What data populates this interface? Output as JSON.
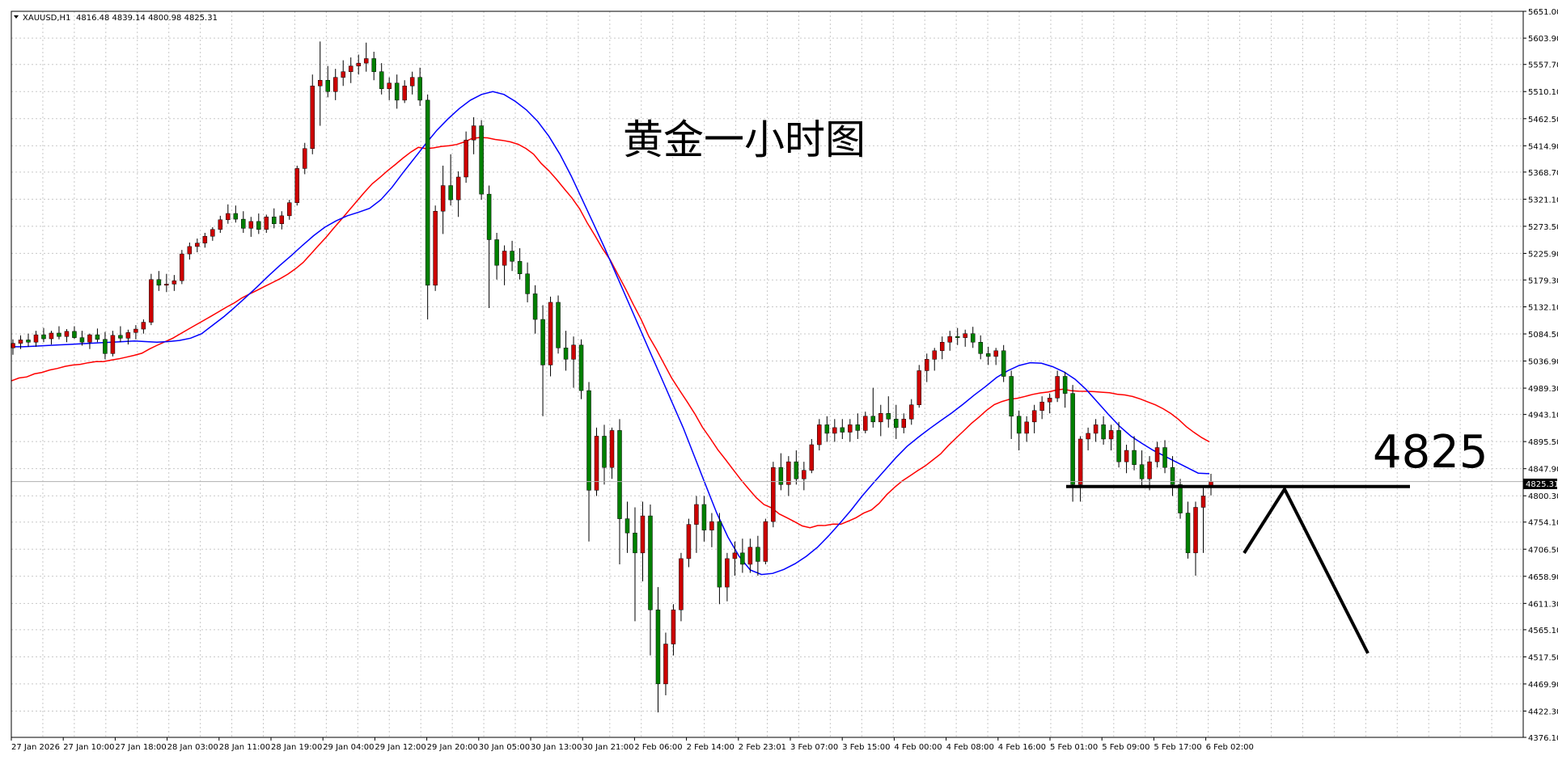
{
  "header": {
    "symbol_label": "XAUUSD,H1",
    "ohlc": "4816.48 4839.14 4800.98 4825.31"
  },
  "annotations": {
    "title": "黄金一小时图",
    "level_label": "4825"
  },
  "price_tag": "4825.31",
  "colors": {
    "bull": "#cc0000",
    "bear": "#008000",
    "ma_fast": "#0000ff",
    "ma_slow": "#ff0000",
    "grid": "#c8c8c8",
    "axis": "#000000"
  },
  "chart_data": {
    "type": "candlestick",
    "ylim": [
      4376.1,
      5651.0
    ],
    "y_ticks": [
      "5651.00",
      "5603.90",
      "5557.70",
      "5510.10",
      "5462.50",
      "5414.90",
      "5368.70",
      "5321.10",
      "5273.50",
      "5225.90",
      "5179.30",
      "5132.10",
      "5084.50",
      "5036.90",
      "4989.30",
      "4943.10",
      "4895.50",
      "4847.90",
      "4800.30",
      "4754.10",
      "4706.50",
      "4658.90",
      "4611.30",
      "4565.10",
      "4517.50",
      "4469.90",
      "4422.30",
      "4376.10"
    ],
    "x_ticks": [
      "27 Jan 2026",
      "27 Jan 10:00",
      "27 Jan 18:00",
      "28 Jan 03:00",
      "28 Jan 11:00",
      "28 Jan 19:00",
      "29 Jan 04:00",
      "29 Jan 12:00",
      "29 Jan 20:00",
      "30 Jan 05:00",
      "30 Jan 13:00",
      "30 Jan 21:00",
      "2 Feb 06:00",
      "2 Feb 14:00",
      "2 Feb 23:01",
      "3 Feb 07:00",
      "3 Feb 15:00",
      "4 Feb 00:00",
      "4 Feb 08:00",
      "4 Feb 16:00",
      "5 Feb 01:00",
      "5 Feb 09:00",
      "5 Feb 17:00",
      "6 Feb 02:00"
    ],
    "last_price": 4825.31,
    "horizontal_level": 4825,
    "candles": [
      [
        5060,
        5075,
        5048,
        5068
      ],
      [
        5068,
        5082,
        5058,
        5074
      ],
      [
        5074,
        5085,
        5062,
        5070
      ],
      [
        5070,
        5090,
        5062,
        5083
      ],
      [
        5083,
        5095,
        5070,
        5076
      ],
      [
        5076,
        5090,
        5066,
        5086
      ],
      [
        5086,
        5098,
        5075,
        5080
      ],
      [
        5080,
        5093,
        5070,
        5089
      ],
      [
        5089,
        5098,
        5076,
        5078
      ],
      [
        5078,
        5090,
        5064,
        5070
      ],
      [
        5070,
        5085,
        5058,
        5083
      ],
      [
        5083,
        5094,
        5070,
        5075
      ],
      [
        5075,
        5088,
        5040,
        5050
      ],
      [
        5050,
        5090,
        5045,
        5082
      ],
      [
        5082,
        5098,
        5070,
        5077
      ],
      [
        5077,
        5092,
        5066,
        5087
      ],
      [
        5087,
        5100,
        5075,
        5093
      ],
      [
        5093,
        5110,
        5085,
        5105
      ],
      [
        5105,
        5190,
        5100,
        5180
      ],
      [
        5180,
        5195,
        5160,
        5170
      ],
      [
        5170,
        5190,
        5158,
        5172
      ],
      [
        5172,
        5188,
        5160,
        5178
      ],
      [
        5178,
        5232,
        5172,
        5225
      ],
      [
        5225,
        5245,
        5215,
        5238
      ],
      [
        5238,
        5252,
        5228,
        5244
      ],
      [
        5244,
        5262,
        5236,
        5256
      ],
      [
        5256,
        5272,
        5248,
        5268
      ],
      [
        5268,
        5292,
        5262,
        5285
      ],
      [
        5285,
        5312,
        5278,
        5296
      ],
      [
        5296,
        5310,
        5280,
        5286
      ],
      [
        5286,
        5300,
        5262,
        5270
      ],
      [
        5270,
        5290,
        5255,
        5282
      ],
      [
        5282,
        5296,
        5260,
        5268
      ],
      [
        5268,
        5294,
        5262,
        5290
      ],
      [
        5290,
        5305,
        5270,
        5278
      ],
      [
        5278,
        5300,
        5268,
        5292
      ],
      [
        5292,
        5320,
        5285,
        5315
      ],
      [
        5315,
        5380,
        5310,
        5375
      ],
      [
        5375,
        5420,
        5365,
        5410
      ],
      [
        5410,
        5540,
        5400,
        5520
      ],
      [
        5520,
        5598,
        5450,
        5530
      ],
      [
        5530,
        5555,
        5500,
        5510
      ],
      [
        5510,
        5550,
        5495,
        5535
      ],
      [
        5535,
        5565,
        5520,
        5545
      ],
      [
        5545,
        5570,
        5525,
        5555
      ],
      [
        5555,
        5575,
        5540,
        5560
      ],
      [
        5560,
        5596,
        5545,
        5568
      ],
      [
        5568,
        5580,
        5530,
        5545
      ],
      [
        5545,
        5560,
        5505,
        5515
      ],
      [
        5515,
        5535,
        5495,
        5525
      ],
      [
        5525,
        5540,
        5480,
        5495
      ],
      [
        5495,
        5530,
        5490,
        5520
      ],
      [
        5520,
        5545,
        5505,
        5535
      ],
      [
        5535,
        5552,
        5485,
        5495
      ],
      [
        5495,
        5505,
        5110,
        5170
      ],
      [
        5170,
        5310,
        5160,
        5300
      ],
      [
        5300,
        5380,
        5260,
        5345
      ],
      [
        5345,
        5400,
        5310,
        5320
      ],
      [
        5320,
        5370,
        5290,
        5360
      ],
      [
        5360,
        5440,
        5350,
        5425
      ],
      [
        5425,
        5465,
        5400,
        5450
      ],
      [
        5450,
        5460,
        5320,
        5330
      ],
      [
        5330,
        5345,
        5130,
        5250
      ],
      [
        5250,
        5262,
        5180,
        5205
      ],
      [
        5205,
        5240,
        5170,
        5230
      ],
      [
        5230,
        5248,
        5195,
        5212
      ],
      [
        5212,
        5235,
        5180,
        5190
      ],
      [
        5190,
        5210,
        5140,
        5155
      ],
      [
        5155,
        5170,
        5085,
        5110
      ],
      [
        5110,
        5135,
        4940,
        5030
      ],
      [
        5030,
        5150,
        5010,
        5140
      ],
      [
        5140,
        5152,
        5050,
        5060
      ],
      [
        5060,
        5090,
        5020,
        5040
      ],
      [
        5040,
        5080,
        4990,
        5065
      ],
      [
        5065,
        5075,
        4970,
        4985
      ],
      [
        4985,
        5000,
        4720,
        4810
      ],
      [
        4810,
        4920,
        4800,
        4905
      ],
      [
        4905,
        4925,
        4820,
        4850
      ],
      [
        4850,
        4920,
        4830,
        4915
      ],
      [
        4915,
        4935,
        4680,
        4760
      ],
      [
        4760,
        4790,
        4700,
        4735
      ],
      [
        4735,
        4780,
        4580,
        4700
      ],
      [
        4700,
        4790,
        4650,
        4765
      ],
      [
        4765,
        4785,
        4520,
        4600
      ],
      [
        4600,
        4640,
        4420,
        4470
      ],
      [
        4470,
        4560,
        4450,
        4540
      ],
      [
        4540,
        4610,
        4520,
        4600
      ],
      [
        4600,
        4700,
        4580,
        4690
      ],
      [
        4690,
        4760,
        4675,
        4750
      ],
      [
        4750,
        4800,
        4700,
        4785
      ],
      [
        4785,
        4800,
        4720,
        4740
      ],
      [
        4740,
        4770,
        4710,
        4755
      ],
      [
        4755,
        4770,
        4610,
        4640
      ],
      [
        4640,
        4700,
        4615,
        4690
      ],
      [
        4690,
        4720,
        4660,
        4700
      ],
      [
        4700,
        4725,
        4665,
        4680
      ],
      [
        4680,
        4725,
        4665,
        4710
      ],
      [
        4710,
        4730,
        4660,
        4685
      ],
      [
        4685,
        4760,
        4680,
        4755
      ],
      [
        4755,
        4860,
        4745,
        4850
      ],
      [
        4850,
        4875,
        4810,
        4820
      ],
      [
        4820,
        4870,
        4800,
        4860
      ],
      [
        4860,
        4880,
        4820,
        4830
      ],
      [
        4830,
        4860,
        4810,
        4845
      ],
      [
        4845,
        4900,
        4840,
        4890
      ],
      [
        4890,
        4935,
        4880,
        4925
      ],
      [
        4925,
        4940,
        4895,
        4910
      ],
      [
        4910,
        4935,
        4895,
        4920
      ],
      [
        4920,
        4935,
        4900,
        4912
      ],
      [
        4912,
        4935,
        4895,
        4925
      ],
      [
        4925,
        4945,
        4900,
        4915
      ],
      [
        4915,
        4948,
        4910,
        4940
      ],
      [
        4940,
        4990,
        4920,
        4930
      ],
      [
        4930,
        4960,
        4905,
        4945
      ],
      [
        4945,
        4975,
        4920,
        4935
      ],
      [
        4935,
        4960,
        4900,
        4920
      ],
      [
        4920,
        4945,
        4910,
        4935
      ],
      [
        4935,
        4970,
        4925,
        4960
      ],
      [
        4960,
        5030,
        4955,
        5020
      ],
      [
        5020,
        5050,
        5000,
        5040
      ],
      [
        5040,
        5060,
        5020,
        5055
      ],
      [
        5055,
        5080,
        5040,
        5070
      ],
      [
        5070,
        5090,
        5055,
        5080
      ],
      [
        5080,
        5095,
        5065,
        5078
      ],
      [
        5078,
        5092,
        5062,
        5085
      ],
      [
        5085,
        5097,
        5060,
        5070
      ],
      [
        5070,
        5082,
        5040,
        5050
      ],
      [
        5050,
        5062,
        5030,
        5045
      ],
      [
        5045,
        5060,
        5030,
        5055
      ],
      [
        5055,
        5065,
        5000,
        5010
      ],
      [
        5010,
        5020,
        4900,
        4940
      ],
      [
        4940,
        4950,
        4880,
        4910
      ],
      [
        4910,
        4940,
        4895,
        4930
      ],
      [
        4930,
        4960,
        4910,
        4950
      ],
      [
        4950,
        4975,
        4935,
        4965
      ],
      [
        4965,
        4980,
        4945,
        4972
      ],
      [
        4972,
        5020,
        4965,
        5010
      ],
      [
        5010,
        5018,
        4955,
        4980
      ],
      [
        4980,
        4995,
        4790,
        4820
      ],
      [
        4820,
        4905,
        4790,
        4900
      ],
      [
        4900,
        4920,
        4880,
        4910
      ],
      [
        4910,
        4935,
        4895,
        4925
      ],
      [
        4925,
        4940,
        4890,
        4900
      ],
      [
        4900,
        4925,
        4880,
        4915
      ],
      [
        4915,
        4930,
        4850,
        4860
      ],
      [
        4860,
        4890,
        4840,
        4880
      ],
      [
        4880,
        4905,
        4845,
        4855
      ],
      [
        4855,
        4880,
        4815,
        4830
      ],
      [
        4830,
        4870,
        4810,
        4860
      ],
      [
        4860,
        4895,
        4850,
        4885
      ],
      [
        4885,
        4898,
        4840,
        4850
      ],
      [
        4850,
        4870,
        4800,
        4820
      ],
      [
        4820,
        4830,
        4760,
        4770
      ],
      [
        4770,
        4790,
        4690,
        4700
      ],
      [
        4700,
        4790,
        4660,
        4780
      ],
      [
        4780,
        4815,
        4700,
        4800
      ],
      [
        4816,
        4839,
        4801,
        4825
      ]
    ],
    "series": [
      {
        "values": [
          5062,
          5062,
          5063,
          5064,
          5065,
          5066,
          5067,
          5068,
          5069,
          5070,
          5071,
          5072,
          5071,
          5070,
          5071,
          5073,
          5077,
          5085,
          5100,
          5115,
          5132,
          5150,
          5168,
          5187,
          5205,
          5222,
          5240,
          5257,
          5272,
          5283,
          5292,
          5298,
          5305,
          5320,
          5342,
          5368,
          5393,
          5418,
          5442,
          5462,
          5480,
          5495,
          5505,
          5510,
          5505,
          5493,
          5478,
          5458,
          5432,
          5400,
          5362,
          5320,
          5278,
          5235,
          5190,
          5145,
          5100,
          5055,
          5010,
          4965,
          4920,
          4870,
          4820,
          4770,
          4728,
          4694,
          4670,
          4662,
          4664,
          4671,
          4681,
          4694,
          4710,
          4730,
          4752,
          4775,
          4800,
          4823,
          4845,
          4867,
          4887,
          4903,
          4918,
          4932,
          4946,
          4961,
          4977,
          4992,
          5008,
          5020,
          5029,
          5034,
          5033,
          5027,
          5018,
          5005,
          4987,
          4965,
          4943,
          4922,
          4905,
          4892,
          4880,
          4870,
          4860,
          4850,
          4840,
          4839
        ]
      }
    ]
  }
}
